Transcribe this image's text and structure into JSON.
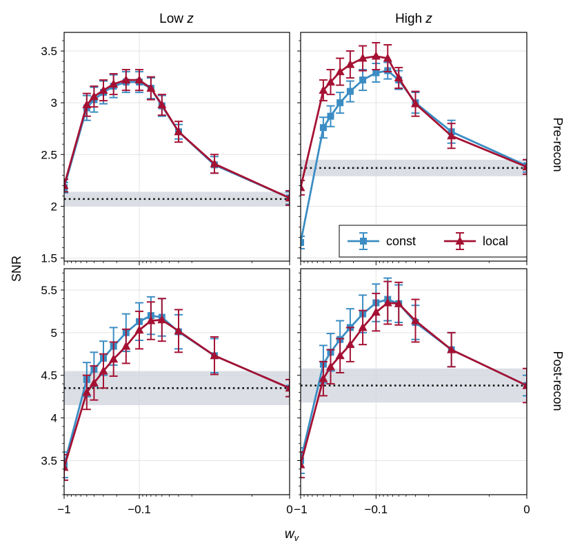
{
  "figure": {
    "ylabel": "SNR",
    "xlabel": "w",
    "xlabel_sub": "v",
    "col_titles": [
      {
        "text": "Low ",
        "italic": "z"
      },
      {
        "text": "High ",
        "italic": "z"
      }
    ],
    "row_titles": [
      "Pre-recon",
      "Post-recon"
    ],
    "colors": {
      "const": "#3b8dc3",
      "local": "#a51133",
      "band": "#d2d7df",
      "baseline": "#111111"
    }
  },
  "chart_data": [
    {
      "id": "low-pre",
      "row": 0,
      "col": 0,
      "type": "line",
      "xscale": "symlog",
      "xlim": [
        -1,
        0
      ],
      "ylim": [
        1.47,
        3.68
      ],
      "yticks": [
        1.5,
        2,
        2.5,
        3,
        3.5
      ],
      "ytick_labels": [
        "1.5",
        "2",
        "2.5",
        "3",
        "3.5"
      ],
      "xticks": [
        -1,
        -0.1,
        0
      ],
      "xtick_labels": [
        "−1",
        "−0.1",
        "0"
      ],
      "baseline": {
        "value": 2.07,
        "band": [
          2.0,
          2.14
        ]
      },
      "legend": null,
      "series": [
        {
          "name": "const",
          "marker": "square",
          "x": [
            -1,
            -0.5,
            -0.4,
            -0.3,
            -0.22,
            -0.15,
            -0.1,
            -0.07,
            -0.05,
            -0.03,
            -0.01,
            0
          ],
          "y": [
            2.18,
            2.95,
            3.03,
            3.1,
            3.16,
            3.2,
            3.2,
            3.14,
            2.97,
            2.72,
            2.4,
            2.08
          ],
          "err": [
            0.05,
            0.12,
            0.12,
            0.11,
            0.11,
            0.1,
            0.1,
            0.1,
            0.1,
            0.07,
            0.08,
            0.06
          ]
        },
        {
          "name": "local",
          "marker": "triangle",
          "x": [
            -1,
            -0.5,
            -0.4,
            -0.3,
            -0.22,
            -0.15,
            -0.1,
            -0.07,
            -0.05,
            -0.03,
            -0.01,
            0
          ],
          "y": [
            2.2,
            2.98,
            3.06,
            3.12,
            3.18,
            3.22,
            3.22,
            3.14,
            2.98,
            2.72,
            2.41,
            2.08
          ],
          "err": [
            0.06,
            0.11,
            0.1,
            0.1,
            0.1,
            0.1,
            0.1,
            0.11,
            0.1,
            0.1,
            0.09,
            0.07
          ]
        }
      ]
    },
    {
      "id": "high-pre",
      "row": 0,
      "col": 1,
      "type": "line",
      "xscale": "symlog",
      "xlim": [
        -1,
        0
      ],
      "ylim": [
        1.47,
        3.68
      ],
      "yticks": [
        1.5,
        2,
        2.5,
        3,
        3.5
      ],
      "ytick_labels": [
        "",
        "",
        "",
        "",
        ""
      ],
      "xticks": [
        -1,
        -0.1,
        0
      ],
      "xtick_labels": [
        "−1",
        "−0.1",
        "0"
      ],
      "baseline": {
        "value": 2.37,
        "band": [
          2.29,
          2.45
        ]
      },
      "legend": {
        "position": "lower-right",
        "entries": [
          "const",
          "local"
        ]
      },
      "series": [
        {
          "name": "const",
          "marker": "square",
          "x": [
            -1,
            -0.5,
            -0.4,
            -0.3,
            -0.22,
            -0.15,
            -0.1,
            -0.07,
            -0.05,
            -0.03,
            -0.01,
            0
          ],
          "y": [
            1.65,
            2.76,
            2.87,
            3.0,
            3.11,
            3.22,
            3.29,
            3.31,
            3.22,
            3.0,
            2.72,
            2.39
          ],
          "err": [
            0.06,
            0.1,
            0.1,
            0.1,
            0.1,
            0.1,
            0.09,
            0.08,
            0.09,
            0.1,
            0.11,
            0.06
          ]
        },
        {
          "name": "local",
          "marker": "triangle",
          "x": [
            -1,
            -0.5,
            -0.4,
            -0.3,
            -0.22,
            -0.15,
            -0.1,
            -0.07,
            -0.05,
            -0.03,
            -0.01,
            0
          ],
          "y": [
            2.18,
            3.12,
            3.2,
            3.3,
            3.37,
            3.43,
            3.45,
            3.43,
            3.24,
            2.99,
            2.68,
            2.38
          ],
          "err": [
            0.07,
            0.1,
            0.12,
            0.13,
            0.13,
            0.12,
            0.13,
            0.13,
            0.1,
            0.12,
            0.12,
            0.07
          ]
        }
      ]
    },
    {
      "id": "low-post",
      "row": 1,
      "col": 0,
      "type": "line",
      "xscale": "symlog",
      "xlim": [
        -1,
        0
      ],
      "ylim": [
        3.1,
        5.75
      ],
      "yticks": [
        3.5,
        4,
        4.5,
        5,
        5.5
      ],
      "ytick_labels": [
        "3.5",
        "4",
        "4.5",
        "5",
        "5.5"
      ],
      "xticks": [
        -1,
        -0.1,
        0
      ],
      "xtick_labels": [
        "−1",
        "−0.1",
        "0"
      ],
      "baseline": {
        "value": 4.35,
        "band": [
          4.15,
          4.55
        ]
      },
      "legend": null,
      "series": [
        {
          "name": "const",
          "marker": "square",
          "x": [
            -1,
            -0.5,
            -0.4,
            -0.3,
            -0.22,
            -0.15,
            -0.1,
            -0.07,
            -0.05,
            -0.03,
            -0.01,
            0
          ],
          "y": [
            3.45,
            4.45,
            4.57,
            4.7,
            4.84,
            5.0,
            5.13,
            5.2,
            5.18,
            5.01,
            4.73,
            4.35
          ],
          "err": [
            0.15,
            0.2,
            0.2,
            0.2,
            0.22,
            0.22,
            0.22,
            0.22,
            0.22,
            0.2,
            0.2,
            0.1
          ]
        },
        {
          "name": "local",
          "marker": "triangle",
          "x": [
            -1,
            -0.5,
            -0.4,
            -0.3,
            -0.22,
            -0.15,
            -0.1,
            -0.07,
            -0.05,
            -0.03,
            -0.01,
            0
          ],
          "y": [
            3.42,
            4.3,
            4.41,
            4.55,
            4.69,
            4.84,
            5.03,
            5.14,
            5.15,
            5.02,
            4.73,
            4.35
          ],
          "err": [
            0.15,
            0.2,
            0.2,
            0.2,
            0.2,
            0.2,
            0.22,
            0.22,
            0.25,
            0.25,
            0.22,
            0.1
          ]
        }
      ]
    },
    {
      "id": "high-post",
      "row": 1,
      "col": 1,
      "type": "line",
      "xscale": "symlog",
      "xlim": [
        -1,
        0
      ],
      "ylim": [
        3.1,
        5.75
      ],
      "yticks": [
        3.5,
        4,
        4.5,
        5,
        5.5
      ],
      "ytick_labels": [
        "",
        "",
        "",
        "",
        ""
      ],
      "xticks": [
        -1,
        -0.1,
        0
      ],
      "xtick_labels": [
        "−1",
        "−0.1",
        "0"
      ],
      "baseline": {
        "value": 4.38,
        "band": [
          4.18,
          4.58
        ]
      },
      "legend": null,
      "series": [
        {
          "name": "const",
          "marker": "square",
          "x": [
            -1,
            -0.5,
            -0.4,
            -0.3,
            -0.22,
            -0.15,
            -0.1,
            -0.07,
            -0.05,
            -0.03,
            -0.01,
            0
          ],
          "y": [
            3.5,
            4.63,
            4.77,
            4.92,
            5.06,
            5.22,
            5.35,
            5.39,
            5.34,
            5.12,
            4.8,
            4.38
          ],
          "err": [
            0.15,
            0.22,
            0.22,
            0.22,
            0.22,
            0.22,
            0.22,
            0.25,
            0.22,
            0.2,
            0.2,
            0.12
          ]
        },
        {
          "name": "local",
          "marker": "triangle",
          "x": [
            -1,
            -0.5,
            -0.4,
            -0.3,
            -0.22,
            -0.15,
            -0.1,
            -0.07,
            -0.05,
            -0.03,
            -0.01,
            0
          ],
          "y": [
            3.45,
            4.46,
            4.6,
            4.73,
            4.86,
            5.06,
            5.24,
            5.35,
            5.34,
            5.14,
            4.8,
            4.38
          ],
          "err": [
            0.15,
            0.2,
            0.2,
            0.2,
            0.2,
            0.2,
            0.22,
            0.25,
            0.25,
            0.25,
            0.2,
            0.2
          ]
        }
      ]
    }
  ]
}
